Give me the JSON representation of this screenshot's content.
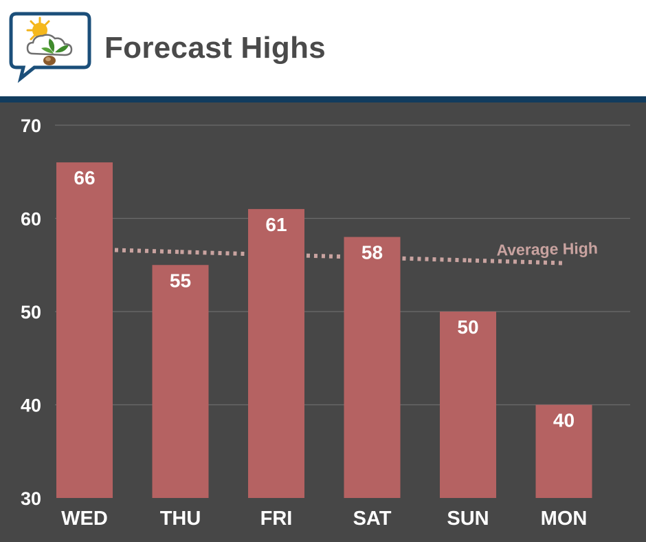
{
  "header": {
    "title": "Forecast Highs",
    "logo_icon": "weather-chat-logo-icon"
  },
  "colors": {
    "background": "#474747",
    "bar": "#b56262",
    "header_rule": "#123c5e",
    "average_line": "#c9a3a0",
    "gridline": "#6b6b6b",
    "text": "#ffffff"
  },
  "chart_data": {
    "type": "bar",
    "title": "Forecast Highs",
    "categories": [
      "WED",
      "THU",
      "FRI",
      "SAT",
      "SUN",
      "MON"
    ],
    "values": [
      66,
      55,
      61,
      58,
      50,
      40
    ],
    "value_labels": [
      "66",
      "55",
      "61",
      "58",
      "50",
      "40"
    ],
    "ylim": [
      30,
      70
    ],
    "yticks": [
      30,
      40,
      50,
      60,
      70
    ],
    "ytick_labels": [
      "30",
      "40",
      "50",
      "60",
      "70"
    ],
    "grid": true,
    "xlabel": "",
    "ylabel": "",
    "average_high": {
      "label": "Average High",
      "values": [
        56.7,
        56.4,
        56.1,
        55.8,
        55.5,
        55.2
      ]
    }
  }
}
